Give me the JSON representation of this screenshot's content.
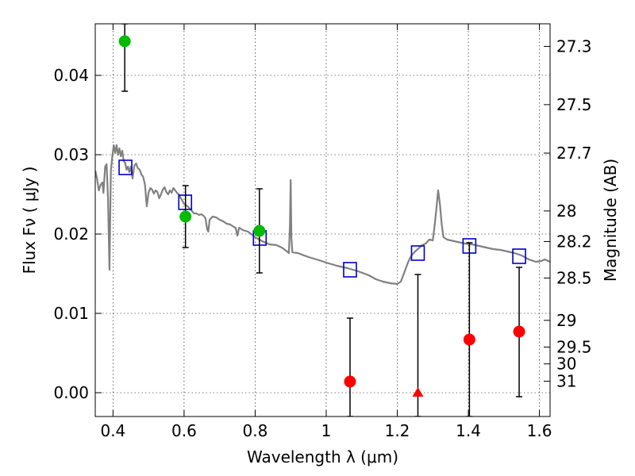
{
  "chart_data": {
    "type": "scatter",
    "xlabel": "Wavelength  λ (μm)",
    "ylabel": "Flux  Fν  ( μJy )",
    "ylabel_right": "Magnitude (AB)",
    "xlim": [
      0.35,
      1.63
    ],
    "ylim": [
      -0.003,
      0.0465
    ],
    "x_ticks": [
      0.4,
      0.6,
      0.8,
      1.0,
      1.2,
      1.4,
      1.6
    ],
    "x_tick_labels": [
      "0.4",
      "0.6",
      "0.8",
      "1",
      "1.2",
      "1.4",
      "1.6"
    ],
    "y_ticks": [
      0.0,
      0.01,
      0.02,
      0.03,
      0.04
    ],
    "y_tick_labels": [
      "0.00",
      "0.01",
      "0.02",
      "0.03",
      "0.04"
    ],
    "mag_ticks": [
      27.3,
      27.5,
      27.7,
      28,
      28.2,
      28.5,
      29,
      29.5,
      30,
      31
    ],
    "mag_tick_labels": [
      "27.3",
      "27.5",
      "27.7",
      "28",
      "28.2",
      "28.5",
      "29",
      "29.5",
      "30",
      "31"
    ],
    "grid": true,
    "model_sed": {
      "color": "#808080",
      "points": [
        [
          0.35,
          0.028
        ],
        [
          0.355,
          0.027
        ],
        [
          0.36,
          0.0255
        ],
        [
          0.365,
          0.0262
        ],
        [
          0.37,
          0.0265
        ],
        [
          0.373,
          0.0252
        ],
        [
          0.378,
          0.0285
        ],
        [
          0.382,
          0.0288
        ],
        [
          0.386,
          0.0245
        ],
        [
          0.39,
          0.0155
        ],
        [
          0.394,
          0.028
        ],
        [
          0.398,
          0.0298
        ],
        [
          0.402,
          0.0312
        ],
        [
          0.406,
          0.0302
        ],
        [
          0.41,
          0.0312
        ],
        [
          0.414,
          0.03
        ],
        [
          0.418,
          0.0308
        ],
        [
          0.422,
          0.0298
        ],
        [
          0.426,
          0.0305
        ],
        [
          0.43,
          0.0292
        ],
        [
          0.434,
          0.029
        ],
        [
          0.438,
          0.0281
        ],
        [
          0.442,
          0.0285
        ],
        [
          0.446,
          0.0278
        ],
        [
          0.45,
          0.0285
        ],
        [
          0.455,
          0.027
        ],
        [
          0.46,
          0.0286
        ],
        [
          0.465,
          0.0289
        ],
        [
          0.47,
          0.0283
        ],
        [
          0.475,
          0.0281
        ],
        [
          0.48,
          0.0275
        ],
        [
          0.485,
          0.0272
        ],
        [
          0.49,
          0.0262
        ],
        [
          0.495,
          0.0235
        ],
        [
          0.5,
          0.0252
        ],
        [
          0.505,
          0.0258
        ],
        [
          0.51,
          0.0256
        ],
        [
          0.515,
          0.0251
        ],
        [
          0.52,
          0.0255
        ],
        [
          0.525,
          0.0253
        ],
        [
          0.53,
          0.0245
        ],
        [
          0.535,
          0.025
        ],
        [
          0.54,
          0.0256
        ],
        [
          0.545,
          0.0259
        ],
        [
          0.55,
          0.0253
        ],
        [
          0.555,
          0.025
        ],
        [
          0.56,
          0.0255
        ],
        [
          0.565,
          0.0252
        ],
        [
          0.57,
          0.0258
        ],
        [
          0.575,
          0.0255
        ],
        [
          0.58,
          0.0252
        ],
        [
          0.585,
          0.025
        ],
        [
          0.59,
          0.0246
        ],
        [
          0.595,
          0.0242
        ],
        [
          0.6,
          0.0238
        ],
        [
          0.61,
          0.0235
        ],
        [
          0.62,
          0.023
        ],
        [
          0.628,
          0.0226
        ],
        [
          0.635,
          0.0226
        ],
        [
          0.642,
          0.0224
        ],
        [
          0.648,
          0.0225
        ],
        [
          0.655,
          0.0223
        ],
        [
          0.66,
          0.022
        ],
        [
          0.665,
          0.0206
        ],
        [
          0.668,
          0.0203
        ],
        [
          0.672,
          0.0218
        ],
        [
          0.68,
          0.0222
        ],
        [
          0.69,
          0.0221
        ],
        [
          0.7,
          0.0218
        ],
        [
          0.71,
          0.0216
        ],
        [
          0.72,
          0.0213
        ],
        [
          0.73,
          0.0212
        ],
        [
          0.74,
          0.0209
        ],
        [
          0.745,
          0.0208
        ],
        [
          0.75,
          0.0198
        ],
        [
          0.755,
          0.0208
        ],
        [
          0.765,
          0.0205
        ],
        [
          0.78,
          0.0203
        ],
        [
          0.8,
          0.0196
        ],
        [
          0.82,
          0.0191
        ],
        [
          0.84,
          0.0187
        ],
        [
          0.86,
          0.0186
        ],
        [
          0.875,
          0.0183
        ],
        [
          0.89,
          0.0178
        ],
        [
          0.895,
          0.0176
        ],
        [
          0.898,
          0.0212
        ],
        [
          0.9,
          0.0268
        ],
        [
          0.902,
          0.0195
        ],
        [
          0.905,
          0.0177
        ],
        [
          0.92,
          0.0176
        ],
        [
          0.95,
          0.0171
        ],
        [
          0.98,
          0.0167
        ],
        [
          1.0,
          0.0164
        ],
        [
          1.03,
          0.016
        ],
        [
          1.06,
          0.0157
        ],
        [
          1.09,
          0.0153
        ],
        [
          1.12,
          0.0148
        ],
        [
          1.14,
          0.0143
        ],
        [
          1.16,
          0.014
        ],
        [
          1.18,
          0.0138
        ],
        [
          1.2,
          0.0137
        ],
        [
          1.21,
          0.014
        ],
        [
          1.22,
          0.0152
        ],
        [
          1.23,
          0.0164
        ],
        [
          1.24,
          0.0173
        ],
        [
          1.25,
          0.0178
        ],
        [
          1.26,
          0.0182
        ],
        [
          1.27,
          0.0186
        ],
        [
          1.28,
          0.0188
        ],
        [
          1.29,
          0.0193
        ],
        [
          1.3,
          0.0192
        ],
        [
          1.305,
          0.021
        ],
        [
          1.31,
          0.0232
        ],
        [
          1.315,
          0.0255
        ],
        [
          1.32,
          0.0238
        ],
        [
          1.325,
          0.0212
        ],
        [
          1.33,
          0.0196
        ],
        [
          1.34,
          0.0193
        ],
        [
          1.35,
          0.0192
        ],
        [
          1.37,
          0.019
        ],
        [
          1.39,
          0.0188
        ],
        [
          1.41,
          0.0187
        ],
        [
          1.43,
          0.0185
        ],
        [
          1.45,
          0.0183
        ],
        [
          1.47,
          0.0181
        ],
        [
          1.49,
          0.018
        ],
        [
          1.51,
          0.0178
        ],
        [
          1.53,
          0.0176
        ],
        [
          1.55,
          0.0173
        ],
        [
          1.57,
          0.0168
        ],
        [
          1.59,
          0.0165
        ],
        [
          1.605,
          0.0166
        ],
        [
          1.615,
          0.0168
        ],
        [
          1.63,
          0.0165
        ]
      ]
    },
    "model_photometry": {
      "color": "#0000cc",
      "points": [
        [
          0.435,
          0.0284
        ],
        [
          0.603,
          0.024
        ],
        [
          0.813,
          0.0195
        ],
        [
          1.067,
          0.0155
        ],
        [
          1.258,
          0.0176
        ],
        [
          1.403,
          0.0185
        ],
        [
          1.543,
          0.0172
        ]
      ]
    },
    "detections": {
      "color": "#00bb00",
      "points": [
        {
          "x": 0.433,
          "y": 0.0443,
          "yerr_low": 0.038,
          "yerr_high": 0.0465
        },
        {
          "x": 0.604,
          "y": 0.0222,
          "yerr_low": 0.0183,
          "yerr_high": 0.0261
        },
        {
          "x": 0.812,
          "y": 0.0204,
          "yerr_low": 0.0151,
          "yerr_high": 0.0257
        }
      ]
    },
    "low_snr": {
      "color": "#ff0000",
      "points": [
        {
          "x": 1.067,
          "y": 0.0014,
          "yerr_low": -0.003,
          "yerr_high": 0.0094,
          "marker": "circle"
        },
        {
          "x": 1.258,
          "y": 0.0,
          "yerr_low": -0.003,
          "yerr_high": 0.0149,
          "marker": "triangle"
        },
        {
          "x": 1.403,
          "y": 0.0067,
          "yerr_low": -0.003,
          "yerr_high": 0.0189,
          "marker": "circle"
        },
        {
          "x": 1.543,
          "y": 0.0077,
          "yerr_low": -0.0005,
          "yerr_high": 0.0158,
          "marker": "circle"
        }
      ]
    }
  }
}
